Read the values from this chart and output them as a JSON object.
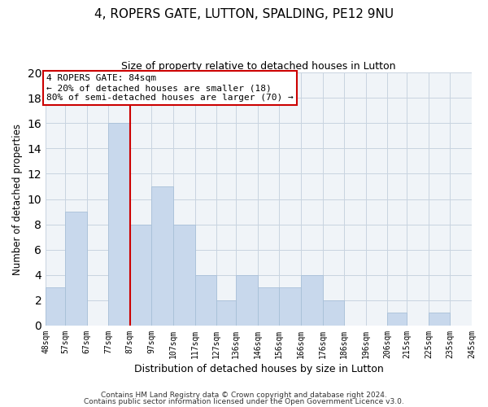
{
  "title": "4, ROPERS GATE, LUTTON, SPALDING, PE12 9NU",
  "subtitle": "Size of property relative to detached houses in Lutton",
  "xlabel": "Distribution of detached houses by size in Lutton",
  "ylabel": "Number of detached properties",
  "bar_color": "#c8d8ec",
  "bar_edgecolor": "#a8c0d8",
  "vline_x_index": 3,
  "vline_color": "#cc0000",
  "annotation_title": "4 ROPERS GATE: 84sqm",
  "annotation_line1": "← 20% of detached houses are smaller (18)",
  "annotation_line2": "80% of semi-detached houses are larger (70) →",
  "bins": [
    48,
    57,
    67,
    77,
    87,
    97,
    107,
    117,
    127,
    136,
    146,
    156,
    166,
    176,
    186,
    196,
    206,
    215,
    225,
    235,
    245
  ],
  "counts": [
    3,
    9,
    0,
    16,
    8,
    11,
    8,
    4,
    2,
    4,
    3,
    3,
    4,
    2,
    0,
    0,
    1,
    0,
    1,
    0
  ],
  "xtick_labels": [
    "48sqm",
    "57sqm",
    "67sqm",
    "77sqm",
    "87sqm",
    "97sqm",
    "107sqm",
    "117sqm",
    "127sqm",
    "136sqm",
    "146sqm",
    "156sqm",
    "166sqm",
    "176sqm",
    "186sqm",
    "196sqm",
    "206sqm",
    "215sqm",
    "225sqm",
    "235sqm",
    "245sqm"
  ],
  "ylim": [
    0,
    20
  ],
  "yticks": [
    0,
    2,
    4,
    6,
    8,
    10,
    12,
    14,
    16,
    18,
    20
  ],
  "footer1": "Contains HM Land Registry data © Crown copyright and database right 2024.",
  "footer2": "Contains public sector information licensed under the Open Government Licence v3.0.",
  "bg_color": "#f0f4f8"
}
